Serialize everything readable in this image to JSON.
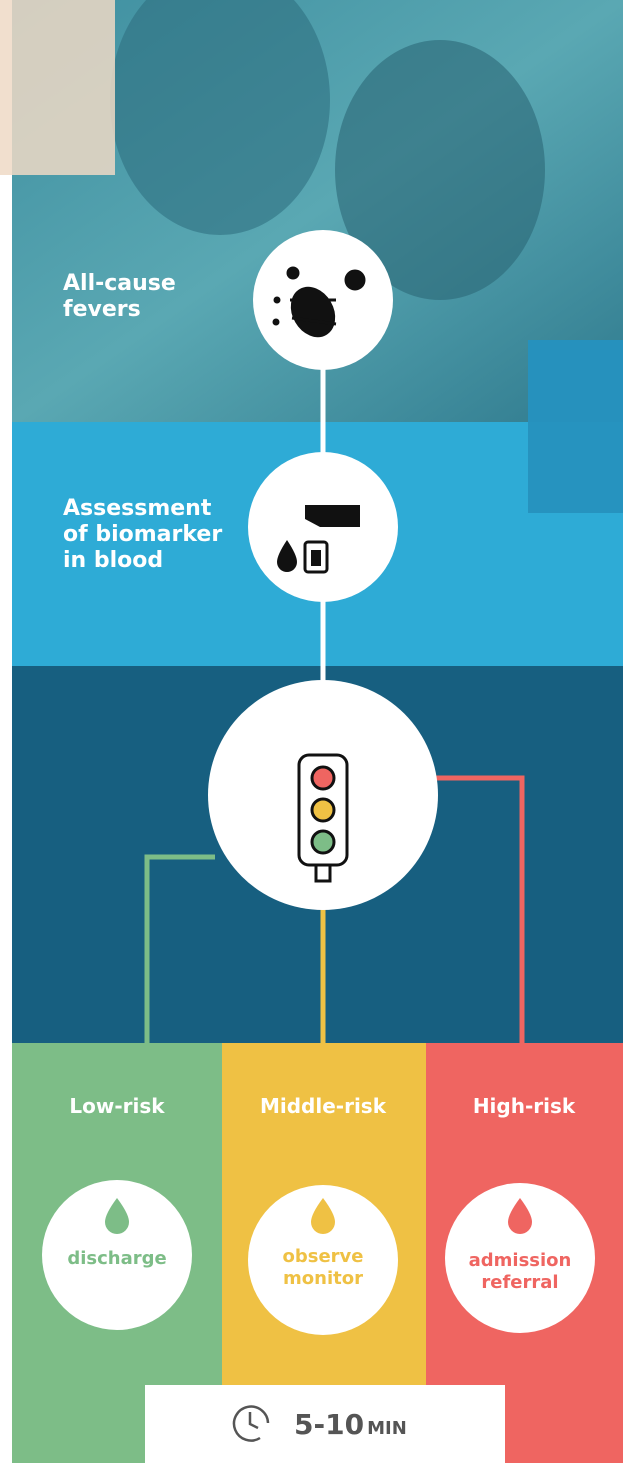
{
  "steps": [
    {
      "label": [
        "All-cause",
        "fevers"
      ]
    },
    {
      "label": [
        "Assessment",
        "of biomarker",
        "in blood"
      ]
    }
  ],
  "outcomes": [
    {
      "risk": "Low-risk",
      "action": [
        "discharge"
      ]
    },
    {
      "risk": "Middle-risk",
      "action": [
        "observe",
        "monitor"
      ]
    },
    {
      "risk": "High-risk",
      "action": [
        "admission",
        "referral"
      ]
    }
  ],
  "time": {
    "value": "5-10",
    "unit": "MIN"
  }
}
